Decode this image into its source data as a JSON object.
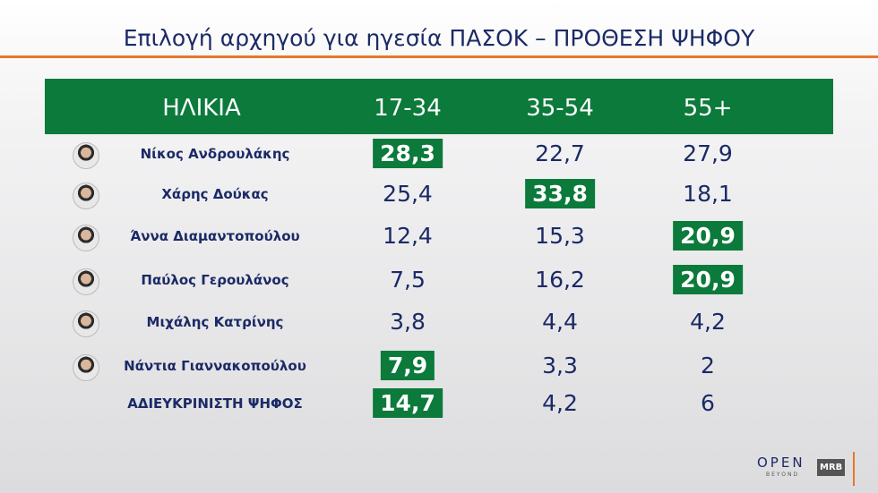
{
  "header": {
    "title": "Επιλογή αρχηγού για ηγεσία ΠΑΣΟΚ – ΠΡΟΘΕΣΗ ΨΗΦΟΥ"
  },
  "table": {
    "columns": [
      "ΗΛΙΚΙΑ",
      "17-34",
      "35-54",
      "55+"
    ],
    "rows": [
      [
        "Νίκος Ανδρουλάκης",
        "28,3",
        "22,7",
        "27,9"
      ],
      [
        "Χάρης Δούκας",
        "25,4",
        "33,8",
        "18,1"
      ],
      [
        "Άννα Διαμαντοπούλου",
        "12,4",
        "15,3",
        "20,9"
      ],
      [
        "Παύλος Γερουλάνος",
        "7,5",
        "16,2",
        "20,9"
      ],
      [
        "Μιχάλης Κατρίνης",
        "3,8",
        "4,4",
        "4,2"
      ],
      [
        "Νάντια Γιαννακοπούλου",
        "7,9",
        "3,3",
        "2"
      ],
      [
        "ΑΔΙΕΥΚΡΙΝΙΣΤΗ ΨΗΦΟΣ",
        "14,7",
        "4,2",
        "6"
      ]
    ]
  },
  "footer": {
    "logo": "OPEN",
    "logo_sub": "BEYOND",
    "source": "MRB"
  }
}
